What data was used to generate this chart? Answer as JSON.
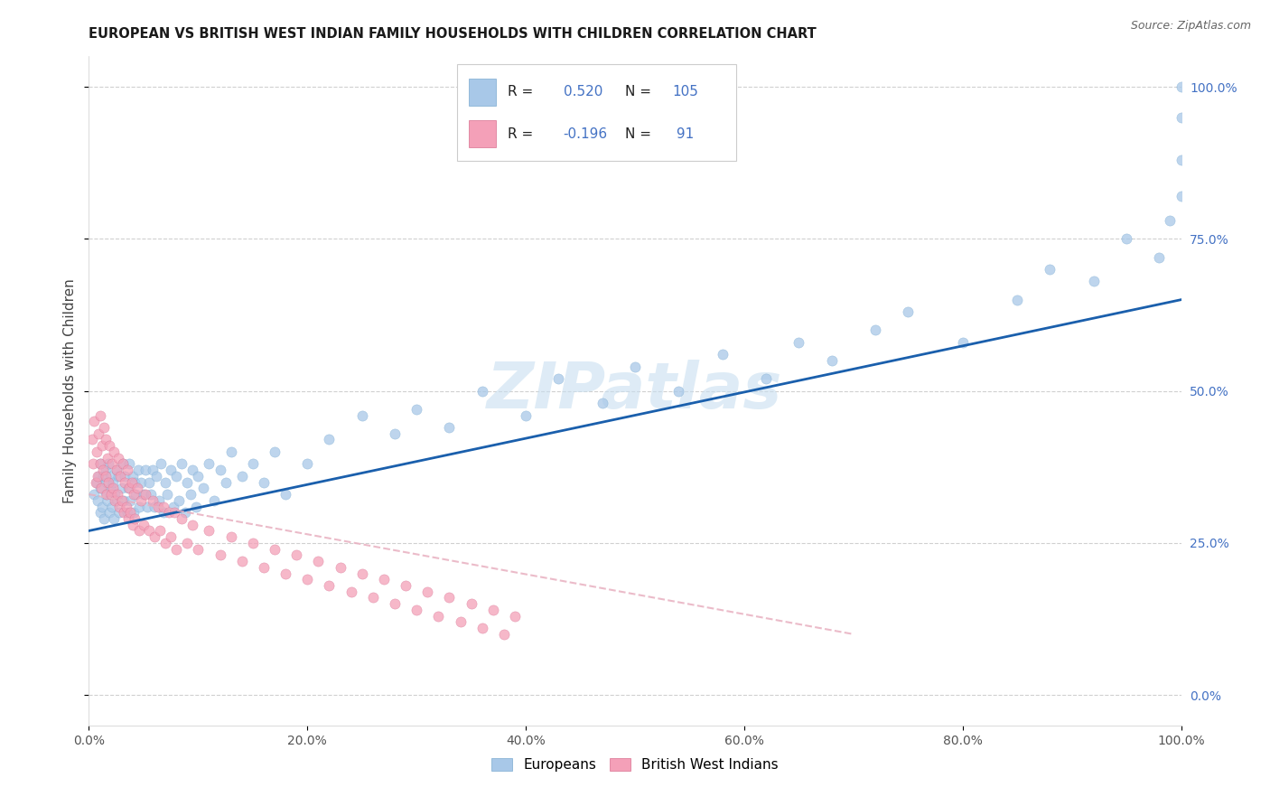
{
  "title": "EUROPEAN VS BRITISH WEST INDIAN FAMILY HOUSEHOLDS WITH CHILDREN CORRELATION CHART",
  "source": "Source: ZipAtlas.com",
  "ylabel": "Family Households with Children",
  "eu_color": "#a8c8e8",
  "eu_edge_color": "#7aaad0",
  "bwi_color": "#f4a0b8",
  "bwi_edge_color": "#d87090",
  "eu_line_color": "#1a5fac",
  "bwi_line_color": "#e8b0c0",
  "watermark_color": "#c8dff0",
  "right_axis_color": "#4472c4",
  "legend_R_color": "#000000",
  "legend_N_color": "#4472c4",
  "grid_color": "#d0d0d0",
  "eu_x": [
    0.005,
    0.007,
    0.008,
    0.009,
    0.01,
    0.01,
    0.01,
    0.012,
    0.013,
    0.014,
    0.015,
    0.015,
    0.016,
    0.017,
    0.018,
    0.019,
    0.02,
    0.02,
    0.021,
    0.022,
    0.023,
    0.024,
    0.025,
    0.026,
    0.027,
    0.028,
    0.03,
    0.031,
    0.032,
    0.033,
    0.035,
    0.036,
    0.037,
    0.038,
    0.04,
    0.041,
    0.042,
    0.043,
    0.045,
    0.046,
    0.048,
    0.05,
    0.052,
    0.053,
    0.055,
    0.057,
    0.058,
    0.06,
    0.062,
    0.064,
    0.066,
    0.068,
    0.07,
    0.072,
    0.075,
    0.077,
    0.08,
    0.082,
    0.085,
    0.088,
    0.09,
    0.093,
    0.095,
    0.098,
    0.1,
    0.105,
    0.11,
    0.115,
    0.12,
    0.125,
    0.13,
    0.14,
    0.15,
    0.16,
    0.17,
    0.18,
    0.2,
    0.22,
    0.25,
    0.28,
    0.3,
    0.33,
    0.36,
    0.4,
    0.43,
    0.47,
    0.5,
    0.54,
    0.58,
    0.62,
    0.65,
    0.68,
    0.72,
    0.75,
    0.8,
    0.85,
    0.88,
    0.92,
    0.95,
    0.98,
    0.99,
    1.0,
    1.0,
    1.0,
    1.0
  ],
  "eu_y": [
    0.33,
    0.35,
    0.32,
    0.36,
    0.3,
    0.34,
    0.38,
    0.31,
    0.36,
    0.29,
    0.33,
    0.37,
    0.35,
    0.32,
    0.38,
    0.3,
    0.34,
    0.36,
    0.31,
    0.35,
    0.29,
    0.33,
    0.37,
    0.32,
    0.36,
    0.3,
    0.34,
    0.38,
    0.32,
    0.36,
    0.3,
    0.34,
    0.38,
    0.32,
    0.36,
    0.3,
    0.35,
    0.33,
    0.37,
    0.31,
    0.35,
    0.33,
    0.37,
    0.31,
    0.35,
    0.33,
    0.37,
    0.31,
    0.36,
    0.32,
    0.38,
    0.3,
    0.35,
    0.33,
    0.37,
    0.31,
    0.36,
    0.32,
    0.38,
    0.3,
    0.35,
    0.33,
    0.37,
    0.31,
    0.36,
    0.34,
    0.38,
    0.32,
    0.37,
    0.35,
    0.4,
    0.36,
    0.38,
    0.35,
    0.4,
    0.33,
    0.38,
    0.42,
    0.46,
    0.43,
    0.47,
    0.44,
    0.5,
    0.46,
    0.52,
    0.48,
    0.54,
    0.5,
    0.56,
    0.52,
    0.58,
    0.55,
    0.6,
    0.63,
    0.58,
    0.65,
    0.7,
    0.68,
    0.75,
    0.72,
    0.78,
    0.82,
    0.88,
    0.95,
    1.0
  ],
  "bwi_x": [
    0.003,
    0.004,
    0.005,
    0.006,
    0.007,
    0.008,
    0.009,
    0.01,
    0.01,
    0.011,
    0.012,
    0.013,
    0.014,
    0.015,
    0.015,
    0.016,
    0.017,
    0.018,
    0.019,
    0.02,
    0.021,
    0.022,
    0.023,
    0.024,
    0.025,
    0.026,
    0.027,
    0.028,
    0.029,
    0.03,
    0.031,
    0.032,
    0.033,
    0.034,
    0.035,
    0.036,
    0.037,
    0.038,
    0.039,
    0.04,
    0.041,
    0.042,
    0.044,
    0.046,
    0.048,
    0.05,
    0.052,
    0.055,
    0.058,
    0.06,
    0.063,
    0.065,
    0.068,
    0.07,
    0.073,
    0.075,
    0.078,
    0.08,
    0.085,
    0.09,
    0.095,
    0.1,
    0.11,
    0.12,
    0.13,
    0.14,
    0.15,
    0.16,
    0.17,
    0.18,
    0.19,
    0.2,
    0.21,
    0.22,
    0.23,
    0.24,
    0.25,
    0.26,
    0.27,
    0.28,
    0.29,
    0.3,
    0.31,
    0.32,
    0.33,
    0.34,
    0.35,
    0.36,
    0.37,
    0.38,
    0.39
  ],
  "bwi_y": [
    0.42,
    0.38,
    0.45,
    0.35,
    0.4,
    0.36,
    0.43,
    0.38,
    0.46,
    0.34,
    0.41,
    0.37,
    0.44,
    0.36,
    0.42,
    0.33,
    0.39,
    0.35,
    0.41,
    0.33,
    0.38,
    0.34,
    0.4,
    0.32,
    0.37,
    0.33,
    0.39,
    0.31,
    0.36,
    0.32,
    0.38,
    0.3,
    0.35,
    0.31,
    0.37,
    0.29,
    0.34,
    0.3,
    0.35,
    0.28,
    0.33,
    0.29,
    0.34,
    0.27,
    0.32,
    0.28,
    0.33,
    0.27,
    0.32,
    0.26,
    0.31,
    0.27,
    0.31,
    0.25,
    0.3,
    0.26,
    0.3,
    0.24,
    0.29,
    0.25,
    0.28,
    0.24,
    0.27,
    0.23,
    0.26,
    0.22,
    0.25,
    0.21,
    0.24,
    0.2,
    0.23,
    0.19,
    0.22,
    0.18,
    0.21,
    0.17,
    0.2,
    0.16,
    0.19,
    0.15,
    0.18,
    0.14,
    0.17,
    0.13,
    0.16,
    0.12,
    0.15,
    0.11,
    0.14,
    0.1,
    0.13
  ],
  "eu_line_x": [
    0.0,
    1.0
  ],
  "eu_line_y": [
    0.27,
    0.65
  ],
  "bwi_line_x": [
    0.0,
    0.7
  ],
  "bwi_line_y": [
    0.33,
    0.1
  ],
  "xlim": [
    0.0,
    1.0
  ],
  "ylim": [
    -0.05,
    1.05
  ],
  "xticks": [
    0.0,
    0.2,
    0.4,
    0.6,
    0.8,
    1.0
  ],
  "xtick_labels": [
    "0.0%",
    "20.0%",
    "40.0%",
    "60.0%",
    "80.0%",
    "100.0%"
  ],
  "yticks": [
    0.0,
    0.25,
    0.5,
    0.75,
    1.0
  ],
  "ytick_labels_right": [
    "0.0%",
    "25.0%",
    "50.0%",
    "75.0%",
    "100.0%"
  ]
}
